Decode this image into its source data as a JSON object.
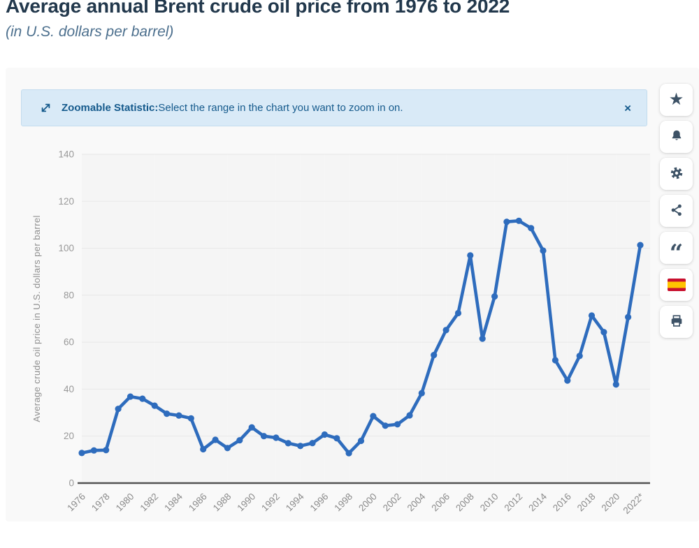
{
  "page": {
    "title": "Average annual Brent crude oil price from 1976 to 2022",
    "subtitle": "(in U.S. dollars per barrel)"
  },
  "banner": {
    "bold_label": "Zoomable Statistic:",
    "text": "Select the range in the chart you want to zoom in on.",
    "close_label": "×"
  },
  "toolbar": {
    "buttons": [
      {
        "name": "favorite",
        "icon": "star-icon"
      },
      {
        "name": "alerts",
        "icon": "bell-icon"
      },
      {
        "name": "settings",
        "icon": "gear-icon"
      },
      {
        "name": "share",
        "icon": "share-icon"
      },
      {
        "name": "cite",
        "icon": "quote-icon"
      },
      {
        "name": "spanish-version",
        "icon": "spain-flag-icon"
      },
      {
        "name": "print",
        "icon": "printer-icon"
      }
    ]
  },
  "icons": {
    "star": "★",
    "quote": "“",
    "close": "×"
  },
  "chart_data": {
    "type": "line",
    "title": "Average annual Brent crude oil price from 1976 to 2022",
    "xlabel": "",
    "ylabel": "Average crude oil price in U.S. dollars per barrel",
    "ylim": [
      0,
      140
    ],
    "ytick_interval": 20,
    "grid": true,
    "legend": "none",
    "x": [
      1976,
      1977,
      1978,
      1979,
      1980,
      1981,
      1982,
      1983,
      1984,
      1985,
      1986,
      1987,
      1988,
      1989,
      1990,
      1991,
      1992,
      1993,
      1994,
      1995,
      1996,
      1997,
      1998,
      1999,
      2000,
      2001,
      2002,
      2003,
      2004,
      2005,
      2006,
      2007,
      2008,
      2009,
      2010,
      2011,
      2012,
      2013,
      2014,
      2015,
      2016,
      2017,
      2018,
      2019,
      2020,
      2021,
      2022
    ],
    "values": [
      12.8,
      13.92,
      14.02,
      31.61,
      36.83,
      35.93,
      32.97,
      29.55,
      28.78,
      27.56,
      14.43,
      18.44,
      14.92,
      18.23,
      23.73,
      20.0,
      19.32,
      16.97,
      15.82,
      17.02,
      20.67,
      19.09,
      12.72,
      17.97,
      28.5,
      24.44,
      25.02,
      28.83,
      38.27,
      54.52,
      65.14,
      72.39,
      96.94,
      61.51,
      79.47,
      111.26,
      111.67,
      108.56,
      98.97,
      52.32,
      43.67,
      54.13,
      71.34,
      64.3,
      41.96,
      70.68,
      101.32
    ],
    "xtick_labels": [
      "1976",
      "1978",
      "1980",
      "1982",
      "1984",
      "1986",
      "1988",
      "1990",
      "1992",
      "1994",
      "1996",
      "1998",
      "2000",
      "2002",
      "2004",
      "2006",
      "2008",
      "2010",
      "2012",
      "2014",
      "2016",
      "2018",
      "2020",
      "2022*"
    ],
    "line_color": "#2e6cbd",
    "stripe_color": "#f5f5f5",
    "grid_color": "#e8e8e8",
    "axis_color": "#525252",
    "tick_color": "#8c8c8c"
  }
}
